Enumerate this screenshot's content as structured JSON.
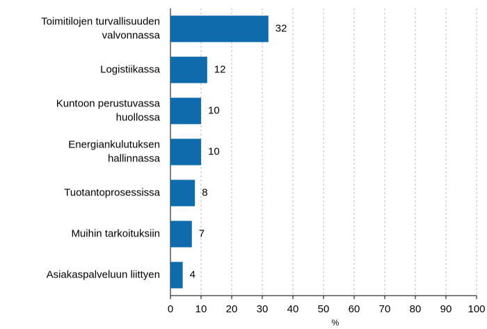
{
  "chart_data": {
    "type": "barh",
    "categories": [
      "Toimitilojen turvallisuuden\nvalvonnassa",
      "Logistiikassa",
      "Kuntoon perustuvassa\nhuollossa",
      "Energiankulutuksen\nhallinnassa",
      "Tuotantoprosessissa",
      "Muihin tarkoituksiin",
      "Asiakaspalveluun liittyen"
    ],
    "values": [
      32,
      12,
      10,
      10,
      8,
      7,
      4
    ],
    "color": "#0f6bab",
    "xlabel": "%",
    "xlim": [
      0,
      100
    ],
    "xticks": [
      0,
      10,
      20,
      30,
      40,
      50,
      60,
      70,
      80,
      90,
      100
    ],
    "grid": true
  }
}
